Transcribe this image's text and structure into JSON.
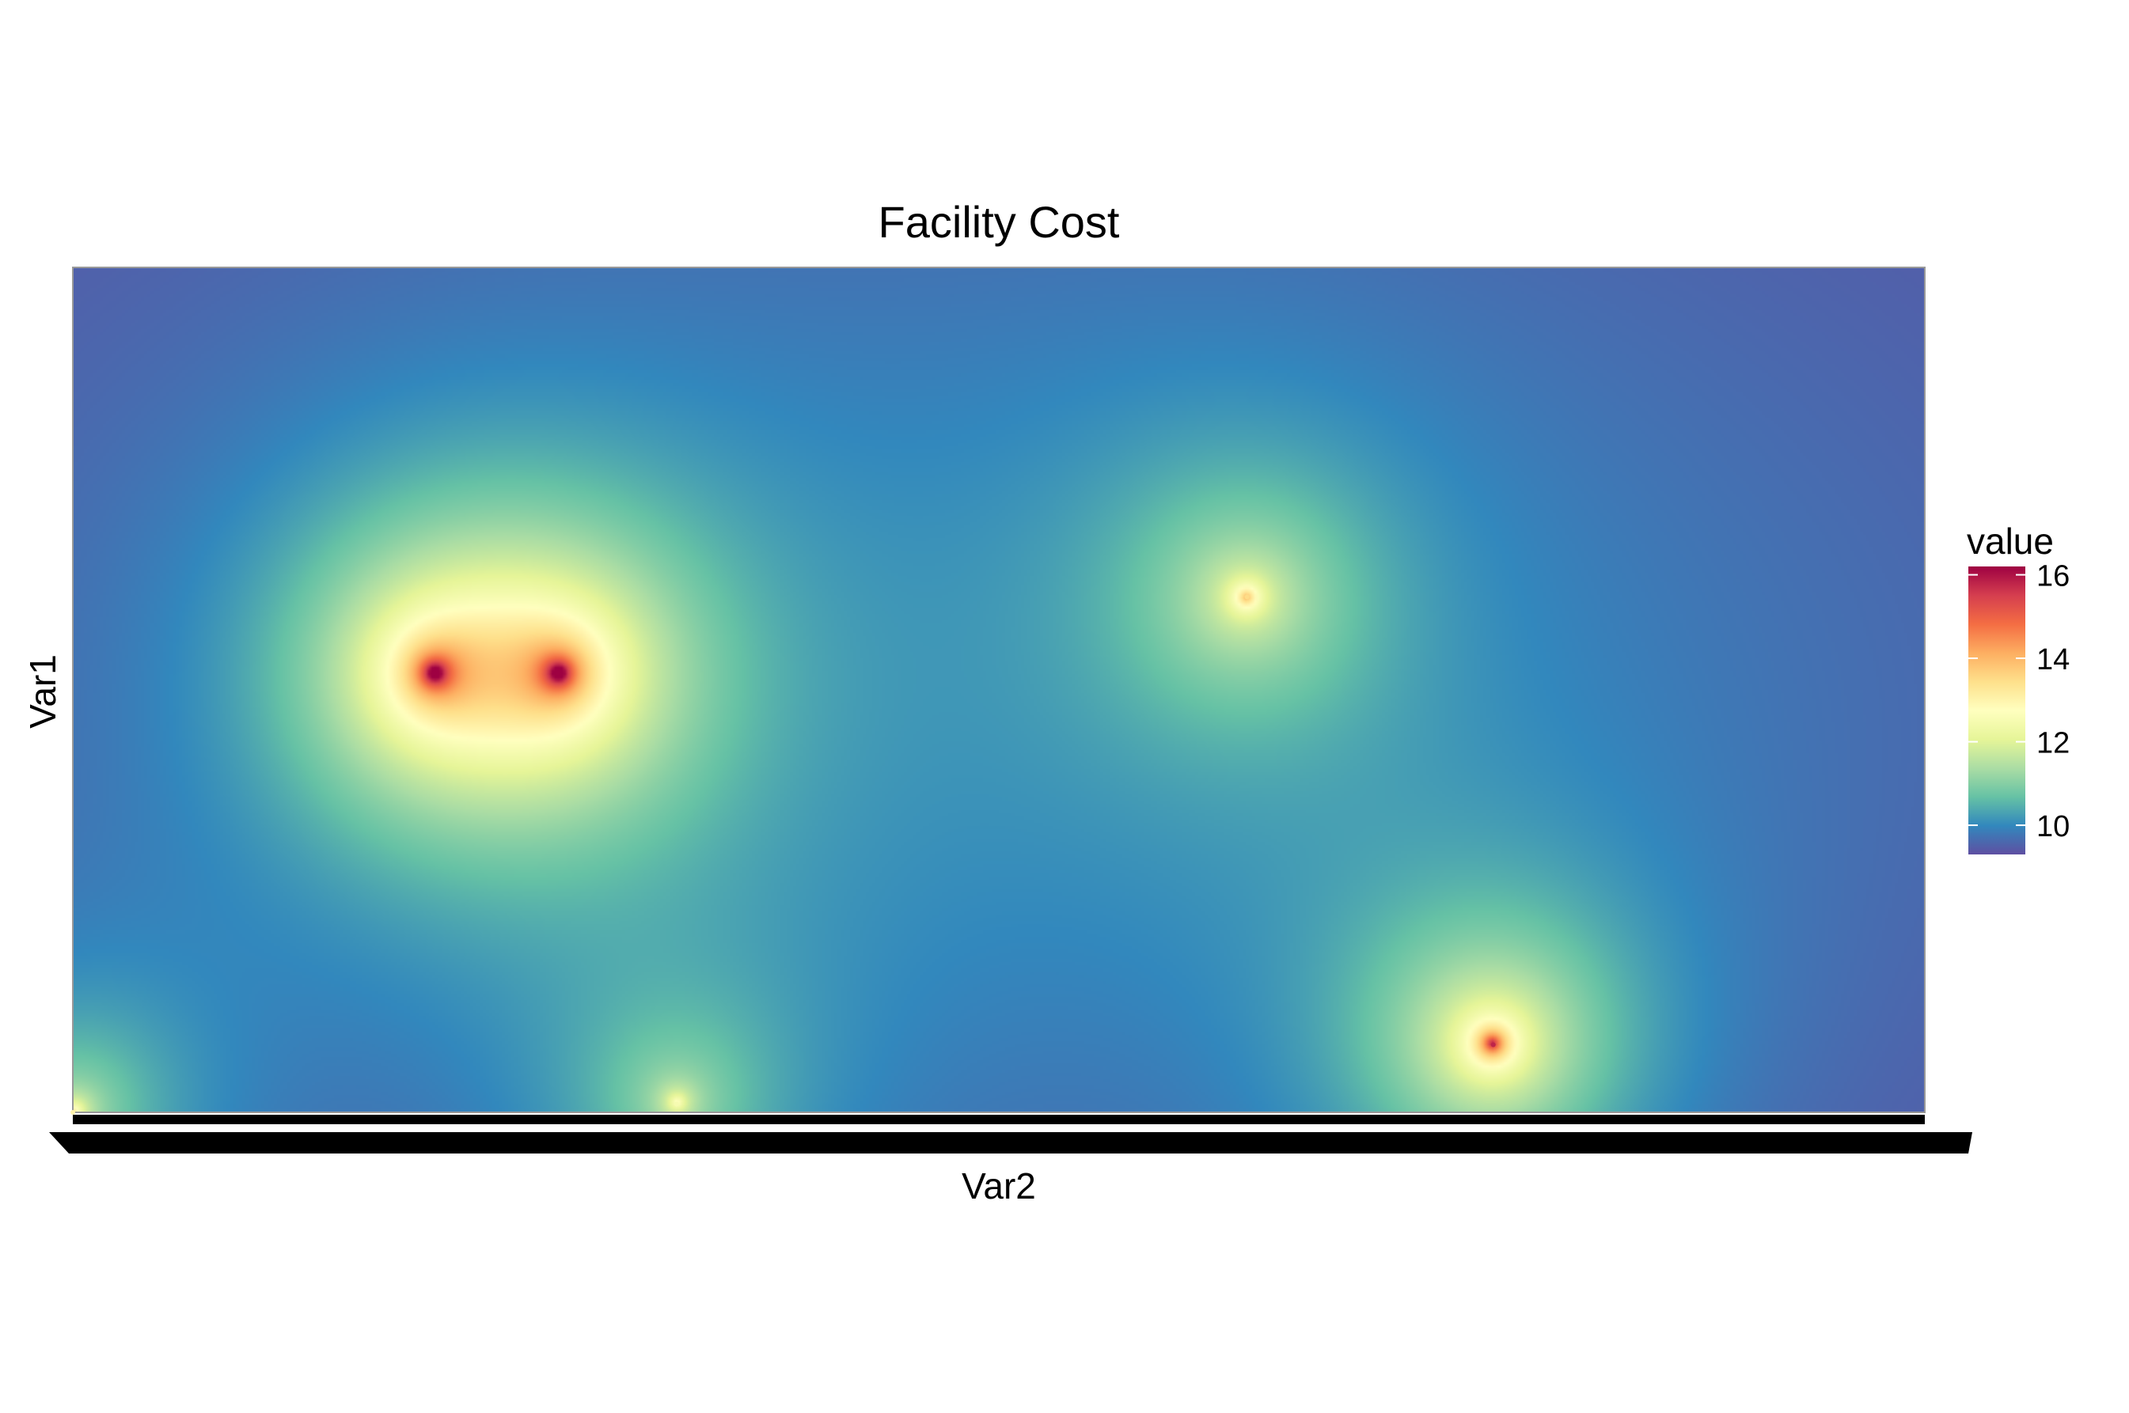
{
  "chart_data": {
    "type": "heatmap",
    "title": "Facility Cost",
    "xlabel": "Var2",
    "ylabel": "Var1",
    "x_tick_labels": "overplotted (illegible)",
    "y_tick_labels": "none",
    "legend": {
      "title": "value",
      "position": "right",
      "ticks": [
        10,
        12,
        14,
        16
      ],
      "range": [
        9.3,
        16.2
      ],
      "palette": "Spectral (reversed)",
      "colors": [
        "#5E4FA2",
        "#3288BD",
        "#66C2A5",
        "#ABDDA4",
        "#E6F598",
        "#FFFFBF",
        "#FEE08B",
        "#FDAE61",
        "#F46D43",
        "#D53E4F",
        "#9E0142"
      ]
    },
    "grid": false,
    "baseline_value": 9.3,
    "facilities": [
      {
        "x": 0.0,
        "y": 1.0,
        "cost": 13.0
      },
      {
        "x": 0.195,
        "y": 0.48,
        "cost": 16.2
      },
      {
        "x": 0.262,
        "y": 0.48,
        "cost": 16.2
      },
      {
        "x": 0.634,
        "y": 0.39,
        "cost": 13.5
      },
      {
        "x": 0.767,
        "y": 0.92,
        "cost": 15.8
      },
      {
        "x": 0.326,
        "y": 0.99,
        "cost": 12.5
      }
    ]
  }
}
